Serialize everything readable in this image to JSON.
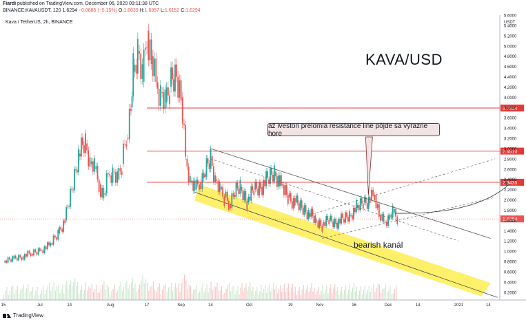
{
  "header": {
    "author": "Fiardi",
    "published": "published on TradingView.com, December 06, 2020 09:11:38 UTC",
    "symbol_line": "BINANCE:KAVAUSDT, 120",
    "last": "1.6294",
    "change": "−0.0885 (−5.15%)",
    "o": "1.6839",
    "h": "1.6857",
    "l": "1.6152",
    "c": "1.6294"
  },
  "legend_title": "Kava / TetherUS, 2h, BINANCE",
  "annotations": {
    "main_title": "KAVA/USD",
    "callout": "až ivestori prelomia resistance line pôjde sa výrazne hore",
    "channel_label": "bearish kanál"
  },
  "footer": {
    "brand": "TradingView"
  },
  "colors": {
    "up": "#26a69a",
    "down": "#ef5350",
    "hline": "#e53935",
    "channel": "#ffeb3b",
    "callout_bg": "#f2e4e4"
  },
  "chart_data": {
    "type": "candlestick",
    "currency_label": "USDT",
    "ylim": [
      0.05,
      5.6
    ],
    "y_ticks": [
      "5.6000",
      "5.4000",
      "5.2000",
      "5.0000",
      "4.8000",
      "4.6000",
      "4.4000",
      "4.2000",
      "4.0000",
      "3.8000",
      "3.6000",
      "3.4000",
      "3.2000",
      "3.0000",
      "2.8000",
      "2.6000",
      "2.4000",
      "2.2000",
      "2.0000",
      "1.8000",
      "1.6000",
      "1.4000",
      "1.2000",
      "1.0000",
      "0.8000",
      "0.6000",
      "0.4000",
      "0.2000"
    ],
    "x_ticks": [
      {
        "label": "15",
        "t": 0
      },
      {
        "label": "Jul",
        "t": 16
      },
      {
        "label": "14",
        "t": 29
      },
      {
        "label": "Aug",
        "t": 47
      },
      {
        "label": "17",
        "t": 63
      },
      {
        "label": "Sep",
        "t": 78
      },
      {
        "label": "14",
        "t": 91
      },
      {
        "label": "Oct",
        "t": 108
      },
      {
        "label": "19",
        "t": 126
      },
      {
        "label": "Nov",
        "t": 139
      },
      {
        "label": "16",
        "t": 154
      },
      {
        "label": "Dec",
        "t": 169
      },
      {
        "label": "14",
        "t": 182
      },
      {
        "label": "2021",
        "t": 200
      },
      {
        "label": "14",
        "t": 213
      }
    ],
    "price_series": [
      [
        0,
        0.78
      ],
      [
        4,
        0.85
      ],
      [
        8,
        0.9
      ],
      [
        12,
        0.95
      ],
      [
        16,
        1.02
      ],
      [
        20,
        1.1
      ],
      [
        24,
        1.35
      ],
      [
        27,
        1.6
      ],
      [
        30,
        2.2
      ],
      [
        33,
        2.9
      ],
      [
        36,
        3.1
      ],
      [
        38,
        2.7
      ],
      [
        40,
        2.6
      ],
      [
        42,
        2.3
      ],
      [
        44,
        2.1
      ],
      [
        46,
        2.5
      ],
      [
        48,
        2.55
      ],
      [
        50,
        2.4
      ],
      [
        52,
        2.7
      ],
      [
        54,
        3.2
      ],
      [
        56,
        3.8
      ],
      [
        57,
        4.5
      ],
      [
        59,
        4.9
      ],
      [
        61,
        4.3
      ],
      [
        63,
        5.3
      ],
      [
        65,
        4.8
      ],
      [
        67,
        4.3
      ],
      [
        69,
        4.1
      ],
      [
        71,
        3.9
      ],
      [
        73,
        4.2
      ],
      [
        76,
        4.4
      ],
      [
        78,
        4.0
      ],
      [
        80,
        2.8
      ],
      [
        82,
        2.35
      ],
      [
        84,
        2.2
      ],
      [
        86,
        2.35
      ],
      [
        88,
        2.5
      ],
      [
        91,
        2.85
      ],
      [
        93,
        2.4
      ],
      [
        95,
        2.2
      ],
      [
        97,
        2.05
      ],
      [
        99,
        1.9
      ],
      [
        101,
        2.1
      ],
      [
        104,
        2.25
      ],
      [
        107,
        1.95
      ],
      [
        110,
        2.2
      ],
      [
        113,
        2.25
      ],
      [
        116,
        2.4
      ],
      [
        119,
        2.55
      ],
      [
        122,
        2.3
      ],
      [
        125,
        2.05
      ],
      [
        128,
        1.95
      ],
      [
        131,
        1.85
      ],
      [
        134,
        1.75
      ],
      [
        137,
        1.6
      ],
      [
        140,
        1.5
      ],
      [
        143,
        1.6
      ],
      [
        146,
        1.55
      ],
      [
        149,
        1.62
      ],
      [
        152,
        1.7
      ],
      [
        155,
        1.85
      ],
      [
        158,
        1.95
      ],
      [
        161,
        2.0
      ],
      [
        163,
        2.1
      ],
      [
        165,
        1.7
      ],
      [
        167,
        1.55
      ],
      [
        169,
        1.62
      ],
      [
        171,
        1.75
      ],
      [
        173,
        1.63
      ]
    ],
    "horizontal_levels": [
      {
        "value": 3.7904,
        "label": "3.7904"
      },
      {
        "value": 2.951,
        "label": "2.9510"
      },
      {
        "value": 2.3435,
        "label": "2.3435"
      }
    ],
    "current_price": {
      "value": 1.6294,
      "label": "1.6294"
    }
  }
}
